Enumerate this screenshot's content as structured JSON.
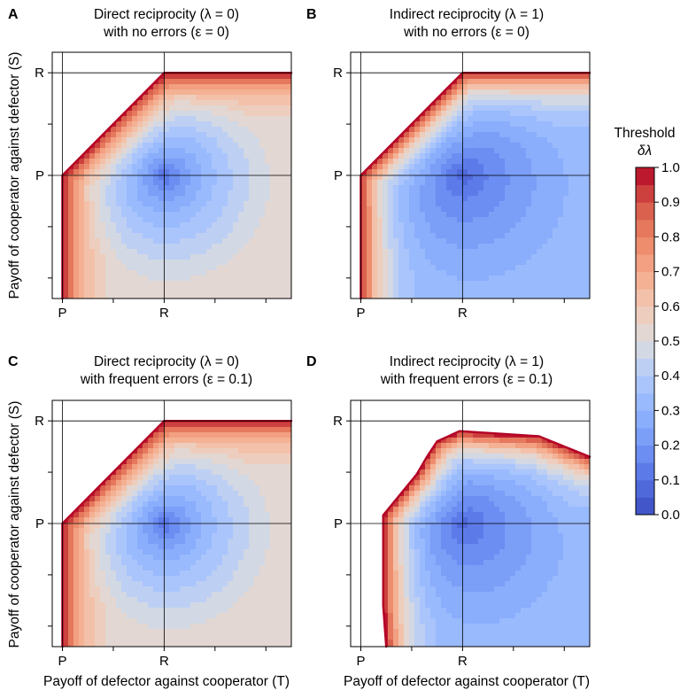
{
  "chart_data": [
    {
      "type": "heatmap",
      "panel": "A",
      "title_line1": "Direct reciprocity (λ = 0)",
      "title_line2": "with no errors (ε = 0)",
      "x_ticks": [
        "P",
        "R"
      ],
      "y_ticks": [
        "R",
        "P"
      ],
      "xlabel": "",
      "ylabel": "Payoff of cooperator against defector (S)",
      "xlim": [
        -0.1,
        2.25
      ],
      "ylim": [
        -1.2,
        1.2
      ],
      "P": 0,
      "R": 1,
      "bounds": {
        "left": 0,
        "right": null,
        "top": 1,
        "bottom": null
      },
      "min_point": [
        1,
        0
      ],
      "edge_value_east": 0.5,
      "edge_value_south": 0.5,
      "boundary_value": 1.0
    },
    {
      "type": "heatmap",
      "panel": "B",
      "title_line1": "Indirect reciprocity (λ = 1)",
      "title_line2": "with no errors (ε = 0)",
      "x_ticks": [
        "P",
        "R"
      ],
      "y_ticks": [
        "R",
        "P"
      ],
      "xlabel": "",
      "ylabel": "",
      "xlim": [
        -0.1,
        2.25
      ],
      "ylim": [
        -1.2,
        1.2
      ],
      "P": 0,
      "R": 1,
      "bounds": {
        "left": 0,
        "right": null,
        "top": 1,
        "bottom": null
      },
      "min_point": [
        1,
        0
      ],
      "edge_value_east": 0.3,
      "edge_value_south": 0.3,
      "boundary_value": 1.0
    },
    {
      "type": "heatmap",
      "panel": "C",
      "title_line1": "Direct reciprocity (λ = 0)",
      "title_line2": "with frequent errors (ε = 0.1)",
      "x_ticks": [
        "P",
        "R"
      ],
      "y_ticks": [
        "R",
        "P"
      ],
      "xlabel": "Payoff of defector against cooperator (T)",
      "ylabel": "Payoff of cooperator against defector (S)",
      "xlim": [
        -0.1,
        2.25
      ],
      "ylim": [
        -1.2,
        1.2
      ],
      "P": 0,
      "R": 1,
      "bounds": {
        "left": 0,
        "right": null,
        "top": 1,
        "bottom": null
      },
      "min_point": [
        1,
        0
      ],
      "edge_value_east": 0.5,
      "edge_value_south": 0.5,
      "boundary_value": 1.0
    },
    {
      "type": "heatmap",
      "panel": "D",
      "title_line1": "Indirect reciprocity (λ = 1)",
      "title_line2": "with frequent errors (ε = 0.1)",
      "x_ticks": [
        "P",
        "R"
      ],
      "y_ticks": [
        "R",
        "P"
      ],
      "xlabel": "Payoff of defector against cooperator (T)",
      "ylabel": "",
      "xlim": [
        -0.1,
        2.25
      ],
      "ylim": [
        -1.2,
        1.2
      ],
      "P": 0,
      "R": 1,
      "region_boundary": [
        [
          0.25,
          -1.2
        ],
        [
          0.22,
          -0.8
        ],
        [
          0.22,
          0.08
        ],
        [
          0.55,
          0.48
        ],
        [
          0.65,
          0.65
        ],
        [
          0.75,
          0.8
        ],
        [
          0.97,
          0.9
        ],
        [
          1.75,
          0.85
        ],
        [
          2.25,
          0.65
        ],
        [
          2.25,
          -1.2
        ]
      ],
      "min_point": [
        1,
        0
      ],
      "edge_value_east": 0.3,
      "edge_value_south": 0.3,
      "boundary_value": 1.0
    }
  ],
  "colorbar": {
    "label_line1": "Threshold",
    "label_line2": "δλ",
    "ticks": [
      "1.0",
      "0.9",
      "0.8",
      "0.7",
      "0.6",
      "0.5",
      "0.4",
      "0.3",
      "0.2",
      "0.1",
      "0.0"
    ],
    "levels": 20,
    "vmin": 0.0,
    "vmax": 1.0,
    "colormap": "coolwarm"
  },
  "letters": {
    "A": "A",
    "B": "B",
    "C": "C",
    "D": "D"
  }
}
